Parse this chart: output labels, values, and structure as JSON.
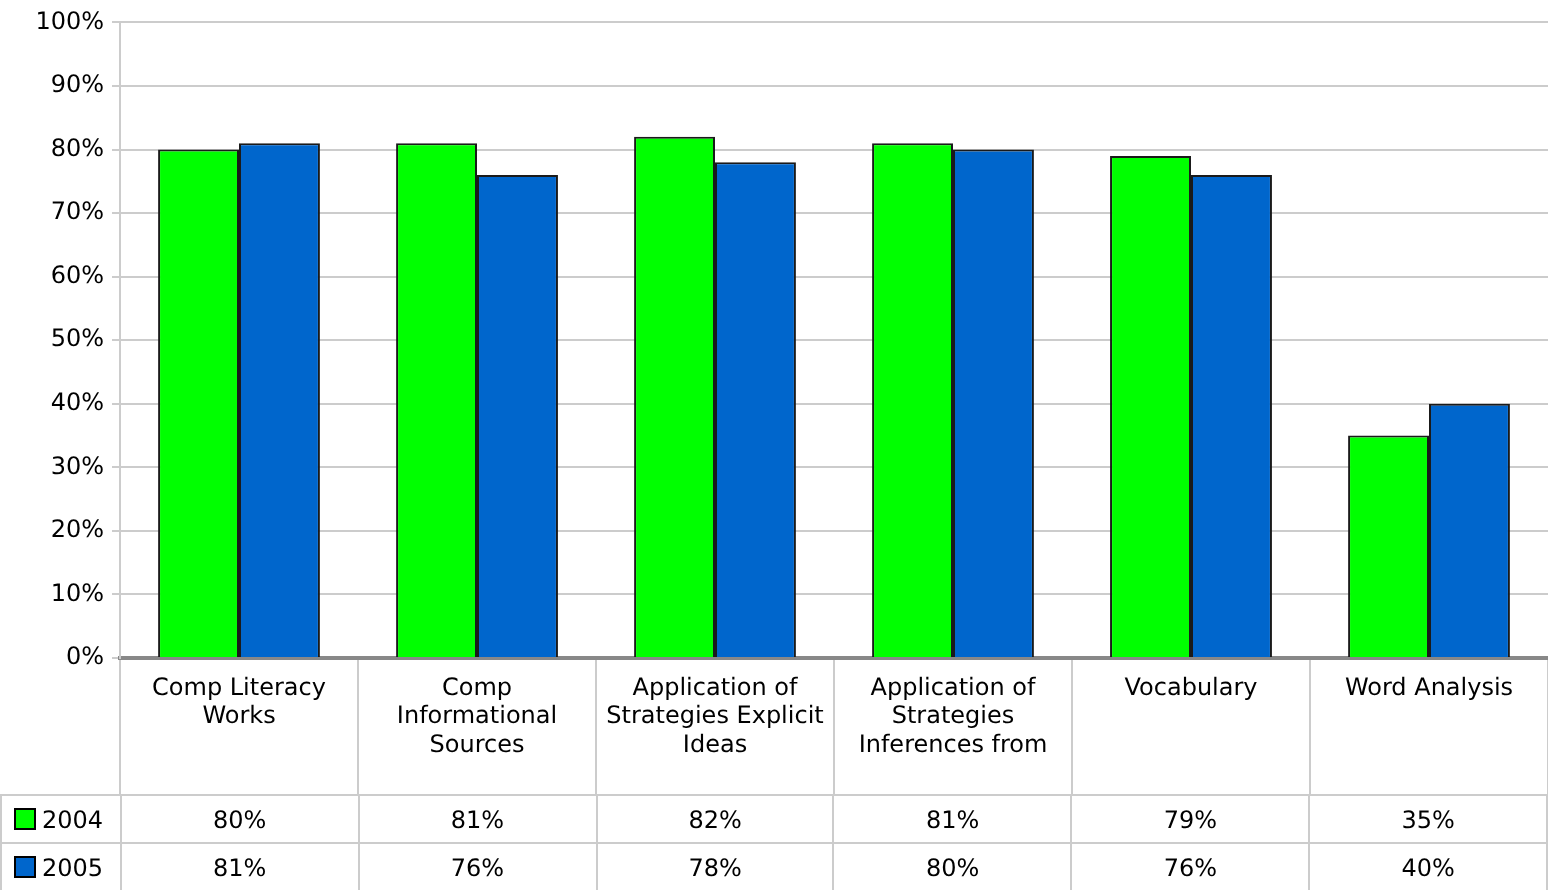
{
  "chart_data": {
    "type": "bar",
    "categories": [
      "Comp Literacy Works",
      "Comp Informational Sources",
      "Application of Strategies Explicit Ideas",
      "Application of Strategies Inferences from",
      "Vocabulary",
      "Word Analysis"
    ],
    "series": [
      {
        "name": "2004",
        "color": "#00ff00",
        "values": [
          80,
          81,
          82,
          81,
          79,
          35
        ],
        "value_labels": [
          "80%",
          "81%",
          "82%",
          "81%",
          "79%",
          "35%"
        ]
      },
      {
        "name": "2005",
        "color": "#0066cc",
        "values": [
          81,
          76,
          78,
          80,
          76,
          40
        ],
        "value_labels": [
          "81%",
          "76%",
          "78%",
          "80%",
          "76%",
          "40%"
        ]
      }
    ],
    "ylim": [
      0,
      100
    ],
    "yticks": [
      {
        "value": 0,
        "label": "0%"
      },
      {
        "value": 10,
        "label": "10%"
      },
      {
        "value": 20,
        "label": "20%"
      },
      {
        "value": 30,
        "label": "30%"
      },
      {
        "value": 40,
        "label": "40%"
      },
      {
        "value": 50,
        "label": "50%"
      },
      {
        "value": 60,
        "label": "60%"
      },
      {
        "value": 70,
        "label": "70%"
      },
      {
        "value": 80,
        "label": "80%"
      },
      {
        "value": 90,
        "label": "90%"
      },
      {
        "value": 100,
        "label": "100%"
      }
    ],
    "grid": "y",
    "legend": "bottom"
  }
}
